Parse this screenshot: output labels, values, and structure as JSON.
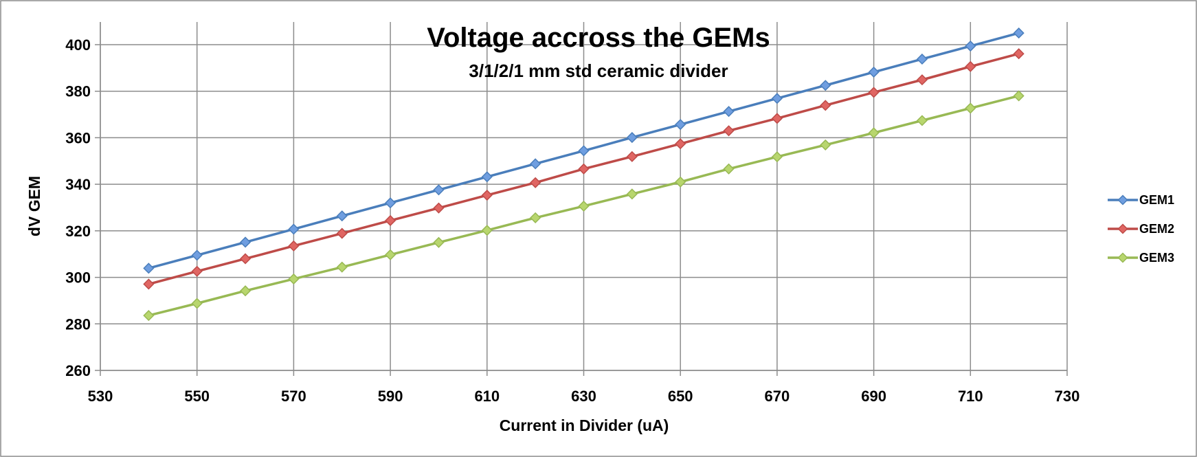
{
  "chart_data": {
    "type": "line",
    "title": "Voltage accross the GEMs",
    "subtitle": "3/1/2/1 mm std ceramic divider",
    "xlabel": "Current in Divider (uA)",
    "ylabel": "dV GEM",
    "xlim": [
      530,
      730
    ],
    "ylim": [
      260,
      410
    ],
    "xticks": [
      530,
      550,
      570,
      590,
      610,
      630,
      650,
      670,
      690,
      710,
      730
    ],
    "yticks": [
      260,
      280,
      300,
      320,
      340,
      360,
      380,
      400
    ],
    "grid": true,
    "legend_position": "right",
    "x": [
      540,
      550,
      560,
      570,
      580,
      590,
      600,
      610,
      620,
      630,
      640,
      650,
      660,
      670,
      680,
      690,
      700,
      710,
      720
    ],
    "series": [
      {
        "name": "GEM1",
        "color": "#4a7ebb",
        "marker_fill": "#6f9ee0",
        "values": [
          303.9,
          309.5,
          315.1,
          320.7,
          326.4,
          332.0,
          337.6,
          343.2,
          348.8,
          354.4,
          360.1,
          365.7,
          371.3,
          376.9,
          382.5,
          388.2,
          393.8,
          399.4,
          405.0
        ]
      },
      {
        "name": "GEM2",
        "color": "#be4b48",
        "marker_fill": "#e06663",
        "values": [
          297.1,
          302.6,
          308.0,
          313.5,
          318.9,
          324.4,
          329.8,
          335.3,
          340.7,
          346.6,
          351.9,
          357.4,
          363.0,
          368.3,
          373.9,
          379.5,
          384.9,
          390.6,
          396.1
        ]
      },
      {
        "name": "GEM3",
        "color": "#98b954",
        "marker_fill": "#b8d66e",
        "values": [
          283.6,
          288.8,
          294.2,
          299.3,
          304.4,
          309.7,
          315.0,
          320.2,
          325.6,
          330.6,
          335.8,
          341.0,
          346.6,
          351.8,
          356.9,
          362.1,
          367.4,
          372.7,
          378.0
        ]
      }
    ]
  }
}
